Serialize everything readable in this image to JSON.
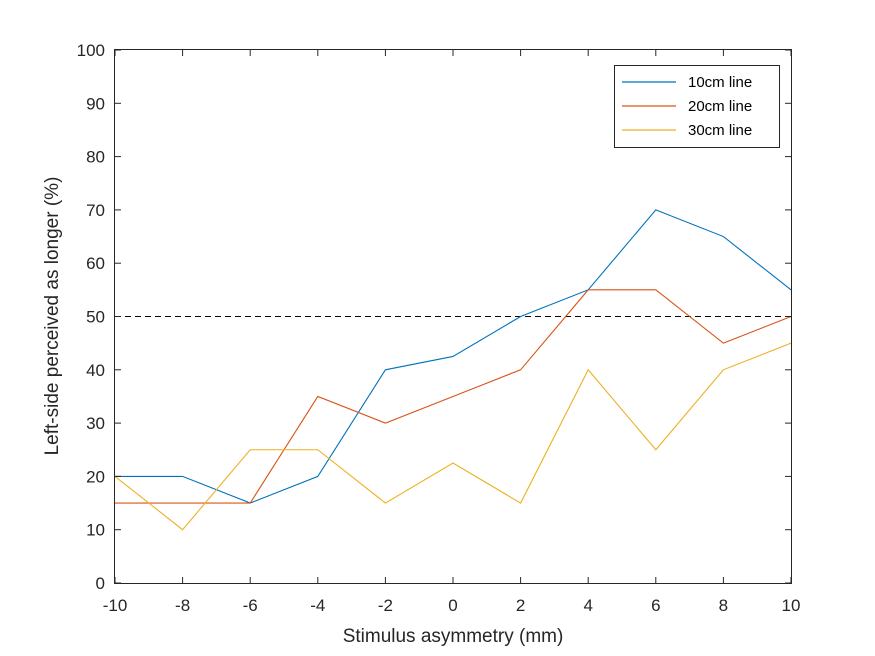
{
  "chart_data": {
    "type": "line",
    "xlabel": "Stimulus asymmetry (mm)",
    "ylabel": "Left-side perceived as longer (%)",
    "xlim": [
      -10,
      10
    ],
    "ylim": [
      0,
      100
    ],
    "xticks": [
      -10,
      -8,
      -6,
      -4,
      -2,
      0,
      2,
      4,
      6,
      8,
      10
    ],
    "yticks": [
      0,
      10,
      20,
      30,
      40,
      50,
      60,
      70,
      80,
      90,
      100
    ],
    "x": [
      -10,
      -8,
      -6,
      -4,
      -2,
      0,
      2,
      4,
      6,
      8,
      10
    ],
    "series": [
      {
        "name": "10cm line",
        "color": "#0072BD",
        "values": [
          20,
          20,
          15,
          20,
          40,
          42.5,
          50,
          55,
          70,
          65,
          55
        ]
      },
      {
        "name": "20cm line",
        "color": "#D95319",
        "values": [
          15,
          15,
          15,
          35,
          30,
          35,
          40,
          55,
          55,
          45,
          50
        ]
      },
      {
        "name": "30cm line",
        "color": "#EDB120",
        "values": [
          20,
          10,
          25,
          25,
          15,
          22.5,
          15,
          40,
          25,
          40,
          45
        ]
      }
    ],
    "reference_line": {
      "y": 50,
      "style": "dashed",
      "color": "#000000"
    },
    "legend_position": "top-right",
    "grid": false
  }
}
